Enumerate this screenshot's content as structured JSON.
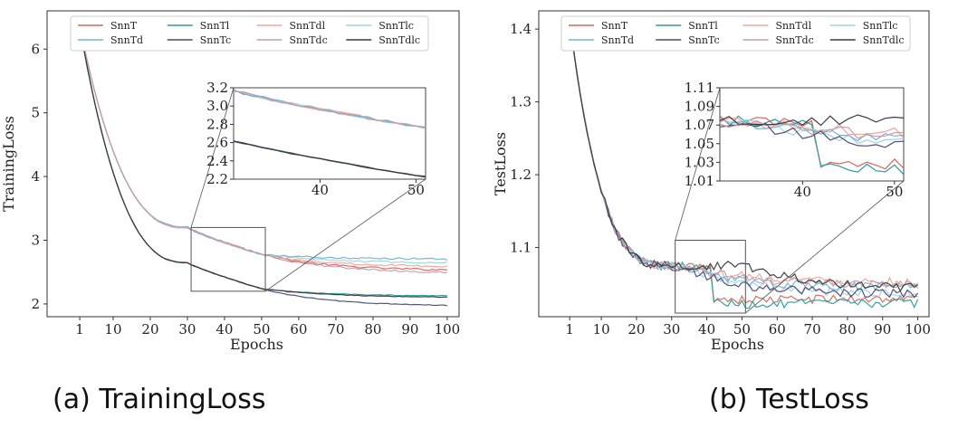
{
  "captions": {
    "a": "(a) TrainingLoss",
    "b": "(b) TestLoss"
  },
  "legend_labels": [
    "SnnT",
    "SnnTl",
    "SnnTdl",
    "SnnTlc",
    "SnnTd",
    "SnnTc",
    "SnnTdc",
    "SnnTdlc"
  ],
  "colors": {
    "SnnT": "#d9675f",
    "SnnTl": "#2a9d9a",
    "SnnTdl": "#efa59b",
    "SnnTlc": "#9fd6dc",
    "SnnTd": "#6fb6d6",
    "SnnTc": "#4c4a78",
    "SnnTdc": "#c99aa8",
    "SnnTdlc": "#3a3a3a"
  },
  "chart_data": [
    {
      "id": "training",
      "type": "line",
      "title": "",
      "xlabel": "Epochs",
      "ylabel": "TrainingLoss",
      "xlim": [
        -7.8,
        103.2
      ],
      "ylim": [
        1.8,
        6.6
      ],
      "xticks": [
        1,
        10,
        20,
        30,
        40,
        50,
        60,
        70,
        80,
        90,
        100
      ],
      "yticks": [
        2,
        3,
        4,
        5,
        6
      ],
      "legend": "top",
      "series": [
        {
          "name": "SnnT",
          "group": "upper",
          "final": 2.52,
          "noise": 0.015
        },
        {
          "name": "SnnTl",
          "group": "lower",
          "final": 2.12,
          "noise": 0.006
        },
        {
          "name": "SnnTdl",
          "group": "upper",
          "final": 2.58,
          "noise": 0.015
        },
        {
          "name": "SnnTlc",
          "group": "upper",
          "final": 2.64,
          "noise": 0.015
        },
        {
          "name": "SnnTd",
          "group": "upper",
          "final": 2.7,
          "noise": 0.015
        },
        {
          "name": "SnnTc",
          "group": "lower",
          "final": 1.96,
          "noise": 0.006
        },
        {
          "name": "SnnTdc",
          "group": "upper",
          "final": 2.48,
          "noise": 0.015
        },
        {
          "name": "SnnTdlc",
          "group": "lower",
          "final": 2.1,
          "noise": 0.006
        }
      ],
      "curve": {
        "start": 6.35,
        "upper_at_30": 3.2,
        "upper_at_50": 2.78,
        "lower_at_30": 2.65,
        "lower_at_50": 2.24
      },
      "inset": {
        "xlim": [
          31,
          51
        ],
        "ylim": [
          2.2,
          3.2
        ],
        "xticks": [
          40,
          50
        ],
        "yticks": [
          2.2,
          2.4,
          2.6,
          2.8,
          3.0,
          3.2
        ],
        "ytick_labels": [
          "2.2",
          "2.4",
          "2.6",
          "2.8",
          "3.0",
          "3.2"
        ],
        "zoom_box": {
          "x": [
            31,
            51
          ],
          "y": [
            2.2,
            3.2
          ]
        }
      }
    },
    {
      "id": "test",
      "type": "line",
      "title": "",
      "xlabel": "Epochs",
      "ylabel": "TestLoss",
      "xlim": [
        -7.8,
        103.2
      ],
      "ylim": [
        1.005,
        1.425
      ],
      "xticks": [
        1,
        10,
        20,
        30,
        40,
        50,
        60,
        70,
        80,
        90,
        100
      ],
      "yticks": [
        1.1,
        1.2,
        1.3,
        1.4
      ],
      "legend": "top",
      "series": [
        {
          "name": "SnnT",
          "at50": 1.028,
          "final": 1.03,
          "drop": 0.04
        },
        {
          "name": "SnnTl",
          "at50": 1.022,
          "final": 1.024,
          "drop": 0.045
        },
        {
          "name": "SnnTdl",
          "at50": 1.062,
          "final": 1.052,
          "drop": 0.0
        },
        {
          "name": "SnnTlc",
          "at50": 1.05,
          "final": 1.035,
          "drop": 0.0
        },
        {
          "name": "SnnTd",
          "at50": 1.054,
          "final": 1.045,
          "drop": 0.0
        },
        {
          "name": "SnnTc",
          "at50": 1.048,
          "final": 1.036,
          "drop": 0.0
        },
        {
          "name": "SnnTdc",
          "at50": 1.058,
          "final": 1.048,
          "drop": 0.0
        },
        {
          "name": "SnnTdlc",
          "at50": 1.075,
          "final": 1.042,
          "drop": 0.0
        }
      ],
      "curve": {
        "start": 1.41,
        "at_30": 1.075
      },
      "inset": {
        "xlim": [
          31,
          51
        ],
        "ylim": [
          1.01,
          1.11
        ],
        "xticks": [
          40,
          50
        ],
        "yticks": [
          1.01,
          1.03,
          1.05,
          1.07,
          1.09,
          1.11
        ],
        "ytick_labels": [
          "1.01",
          "1.03",
          "1.05",
          "1.07",
          "1.09",
          "1.11"
        ],
        "zoom_box": {
          "x": [
            31,
            51
          ],
          "y": [
            1.01,
            1.11
          ]
        }
      }
    }
  ]
}
